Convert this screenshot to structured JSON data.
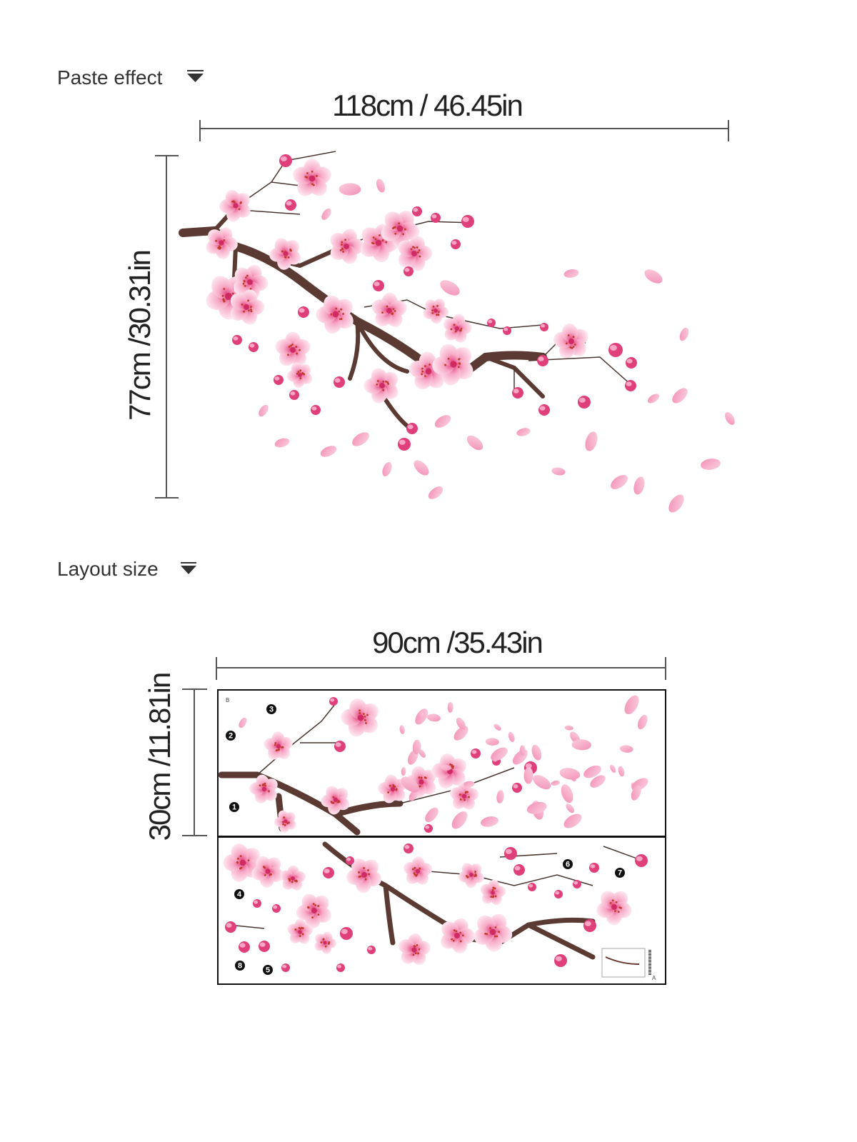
{
  "headings": {
    "paste_effect": "Paste effect",
    "layout_size": "Layout size"
  },
  "paste_effect": {
    "width": "118cm / 46.45in",
    "height": "77cm /30.31in"
  },
  "layout_size": {
    "width": "90cm /35.43in",
    "height": "30cm /11.81in"
  },
  "sheet_markers": [
    "1",
    "2",
    "3",
    "4",
    "5",
    "6",
    "7",
    "8"
  ],
  "sheet_letters": [
    "A",
    "B"
  ]
}
